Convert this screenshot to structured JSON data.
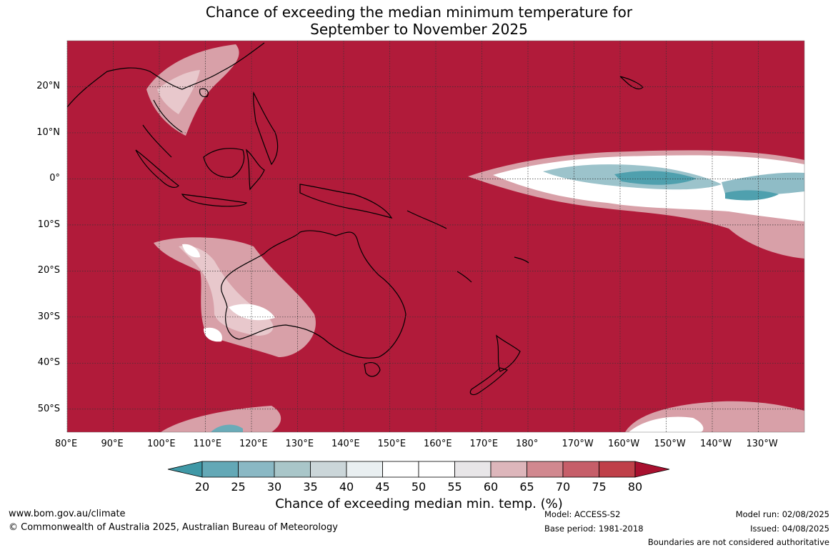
{
  "title": {
    "line1": "Chance of exceeding the median minimum temperature for",
    "line2": "September to November 2025"
  },
  "map": {
    "lon_ticks": [
      "80°E",
      "90°E",
      "100°E",
      "110°E",
      "120°E",
      "130°E",
      "140°E",
      "150°E",
      "160°E",
      "170°E",
      "180°",
      "170°W",
      "160°W",
      "150°W",
      "140°W",
      "130°W"
    ],
    "lat_ticks": [
      "20°N",
      "10°N",
      "0°",
      "10°S",
      "20°S",
      "30°S",
      "40°S",
      "50°S"
    ],
    "background_color": "#b11b3a",
    "land_outline_color": "#000000",
    "region_extent": {
      "lon_min_east": 80,
      "lon_max_east": 240,
      "lat_min": -55,
      "lat_max": 30
    }
  },
  "colorbar": {
    "labels": [
      "20",
      "25",
      "30",
      "35",
      "40",
      "45",
      "50",
      "55",
      "60",
      "65",
      "70",
      "75",
      "80"
    ],
    "colors": [
      "#3f98a6",
      "#63a8b6",
      "#8ab8c4",
      "#a9c6c9",
      "#cbd6d9",
      "#e9eff1",
      "#ffffff",
      "#ffffff",
      "#e8e6e8",
      "#ddb6bb",
      "#d1888f",
      "#c65e69",
      "#bf4049",
      "#a8102f"
    ],
    "title": "Chance of exceeding median min. temp. (%)"
  },
  "footer": {
    "website": "www.bom.gov.au/climate",
    "copyright": "© Commonwealth of Australia 2025, Australian Bureau of Meteorology",
    "model": "Model: ACCESS-S2",
    "base_period": "Base period: 1981-2018",
    "model_run": "Model run: 02/08/2025",
    "issued": "Issued: 04/08/2025",
    "disclaimer": "Boundaries are not considered authoritative"
  }
}
